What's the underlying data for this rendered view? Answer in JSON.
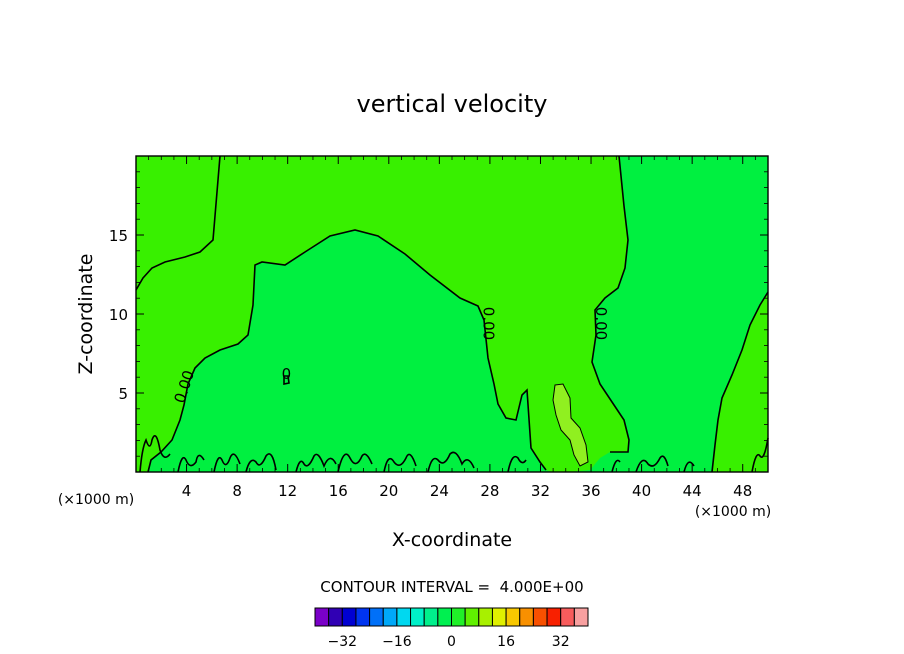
{
  "chart_data": {
    "type": "contour",
    "title": "vertical velocity",
    "xlabel": "X-coordinate",
    "ylabel": "Z-coordinate",
    "x_unit": "(×1000 m)",
    "xlim": [
      0,
      50
    ],
    "ylim": [
      0,
      20
    ],
    "xticks": [
      4,
      8,
      12,
      16,
      20,
      24,
      28,
      32,
      36,
      40,
      44,
      48
    ],
    "yticks": [
      5,
      10,
      15
    ],
    "contour_interval_text": "CONTOUR INTERVAL =  4.000E+00",
    "contour_labels": [
      {
        "text": "0.00",
        "x": 4.2,
        "y": 5.3
      },
      {
        "text": "0.00",
        "x": 27.5,
        "y": 9.4
      },
      {
        "text": "0.00",
        "x": 36.4,
        "y": 9.4
      },
      {
        "text": "0",
        "x": 11.9,
        "y": 5.9
      }
    ],
    "colorbar": {
      "colors": [
        "#7a00c8",
        "#3000b4",
        "#0000d2",
        "#0034f0",
        "#0070f8",
        "#00a8f8",
        "#00d8f0",
        "#00f0c8",
        "#00f08c",
        "#00f050",
        "#20f028",
        "#60f000",
        "#a8f000",
        "#e0f000",
        "#f8c800",
        "#f89000",
        "#f85000",
        "#f82000",
        "#f85c5c",
        "#f8a0a0"
      ],
      "tick_labels": [
        {
          "text": "-32",
          "value": -32
        },
        {
          "text": "-16",
          "value": -16
        },
        {
          "text": "0",
          "value": 0
        },
        {
          "text": "16",
          "value": 16
        },
        {
          "text": "32",
          "value": 32
        }
      ],
      "range": [
        -40,
        40
      ]
    },
    "fill_colors": {
      "negative": "#00f040",
      "positive": "#38f000",
      "high": "#90f020"
    }
  }
}
